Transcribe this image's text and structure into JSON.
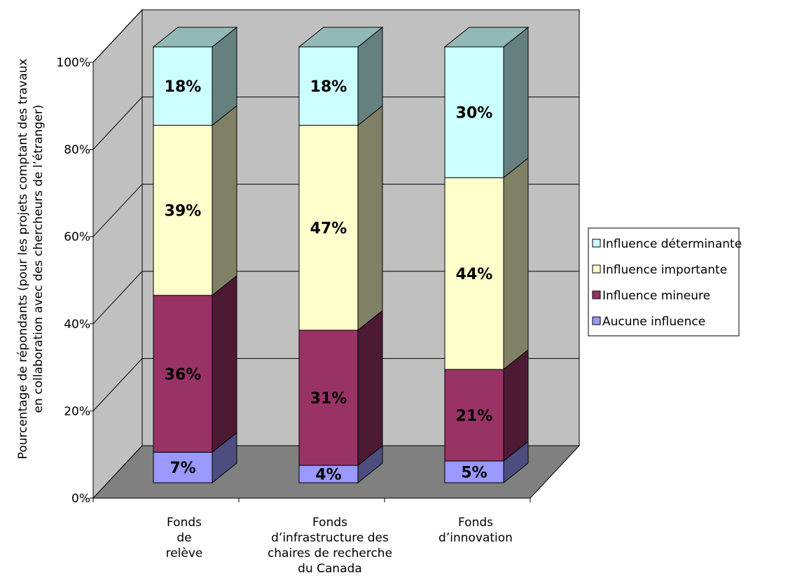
{
  "chart_data": {
    "type": "bar",
    "stacked": true,
    "percent_stacked": true,
    "three_d": true,
    "categories": [
      [
        "Fonds",
        "de",
        "relève"
      ],
      [
        "Fonds",
        "d’infrastructure des",
        "chaires de recherche",
        "du Canada"
      ],
      [
        "Fonds",
        "d’innovation"
      ]
    ],
    "series": [
      {
        "name": "Aucune influence",
        "color": "#9999ff",
        "values": [
          7,
          4,
          5
        ]
      },
      {
        "name": "Influence mineure",
        "color": "#993366",
        "values": [
          36,
          31,
          21
        ]
      },
      {
        "name": "Influence importante",
        "color": "#ffffcc",
        "values": [
          39,
          47,
          44
        ]
      },
      {
        "name": "Influence déterminante",
        "color": "#ccffff",
        "values": [
          18,
          18,
          30
        ]
      }
    ],
    "data_labels": [
      [
        "7%",
        "4%",
        "5%"
      ],
      [
        "36%",
        "31%",
        "21%"
      ],
      [
        "39%",
        "47%",
        "44%"
      ],
      [
        "18%",
        "18%",
        "30%"
      ]
    ],
    "ylim": [
      0,
      100
    ],
    "yticks": [
      0,
      20,
      40,
      60,
      80,
      100
    ],
    "ytick_labels": [
      "0%",
      "20%",
      "40%",
      "60%",
      "80%",
      "100%"
    ],
    "ylabel": [
      "Pourcentage de répondants (pour les projets comptant des travaux",
      "en collaboration avec des chercheurs de l’étranger)"
    ],
    "xlabel": "",
    "title": "",
    "grid": true,
    "legend_position": "right",
    "legend_order": [
      "Influence déterminante",
      "Influence importante",
      "Influence mineure",
      "Aucune influence"
    ],
    "wall_color": "#c0c0c0",
    "floor_color": "#808080"
  }
}
